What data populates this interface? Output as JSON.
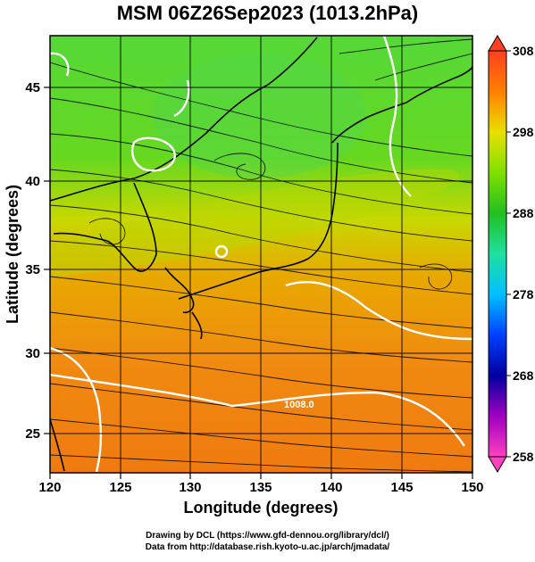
{
  "title": "MSM 06Z26Sep2023 (1013.2hPa)",
  "xlabel": "Longitude (degrees)",
  "ylabel": "Latitude  (degrees)",
  "x_ticks": [
    "120",
    "125",
    "130",
    "135",
    "140",
    "145",
    "150"
  ],
  "y_ticks": [
    "25",
    "30",
    "35",
    "40",
    "45"
  ],
  "colorbar": {
    "ticks": [
      "308",
      "298",
      "288",
      "278",
      "268",
      "258"
    ],
    "min": 258,
    "max": 308,
    "colors": [
      "#ff40c0",
      "#a000c0",
      "#0000a0",
      "#0040ff",
      "#00c0ff",
      "#20e0a0",
      "#20c020",
      "#80e000",
      "#e0e000",
      "#ffb000",
      "#ff7000",
      "#ff3000"
    ]
  },
  "contour_label": "1008.0",
  "credit_line1": "Drawing by DCL (https://www.gfd-dennou.org/library/dcl/)",
  "credit_line2": "Data from http://database.rish.kyoto-u.ac.jp/arch/jmadata/",
  "map": {
    "lon_range": [
      120,
      150
    ],
    "lat_range": [
      22.5,
      48
    ],
    "grid_lon": [
      125,
      130,
      135,
      140,
      145
    ],
    "grid_lat": [
      25,
      30,
      35,
      40,
      45
    ]
  }
}
